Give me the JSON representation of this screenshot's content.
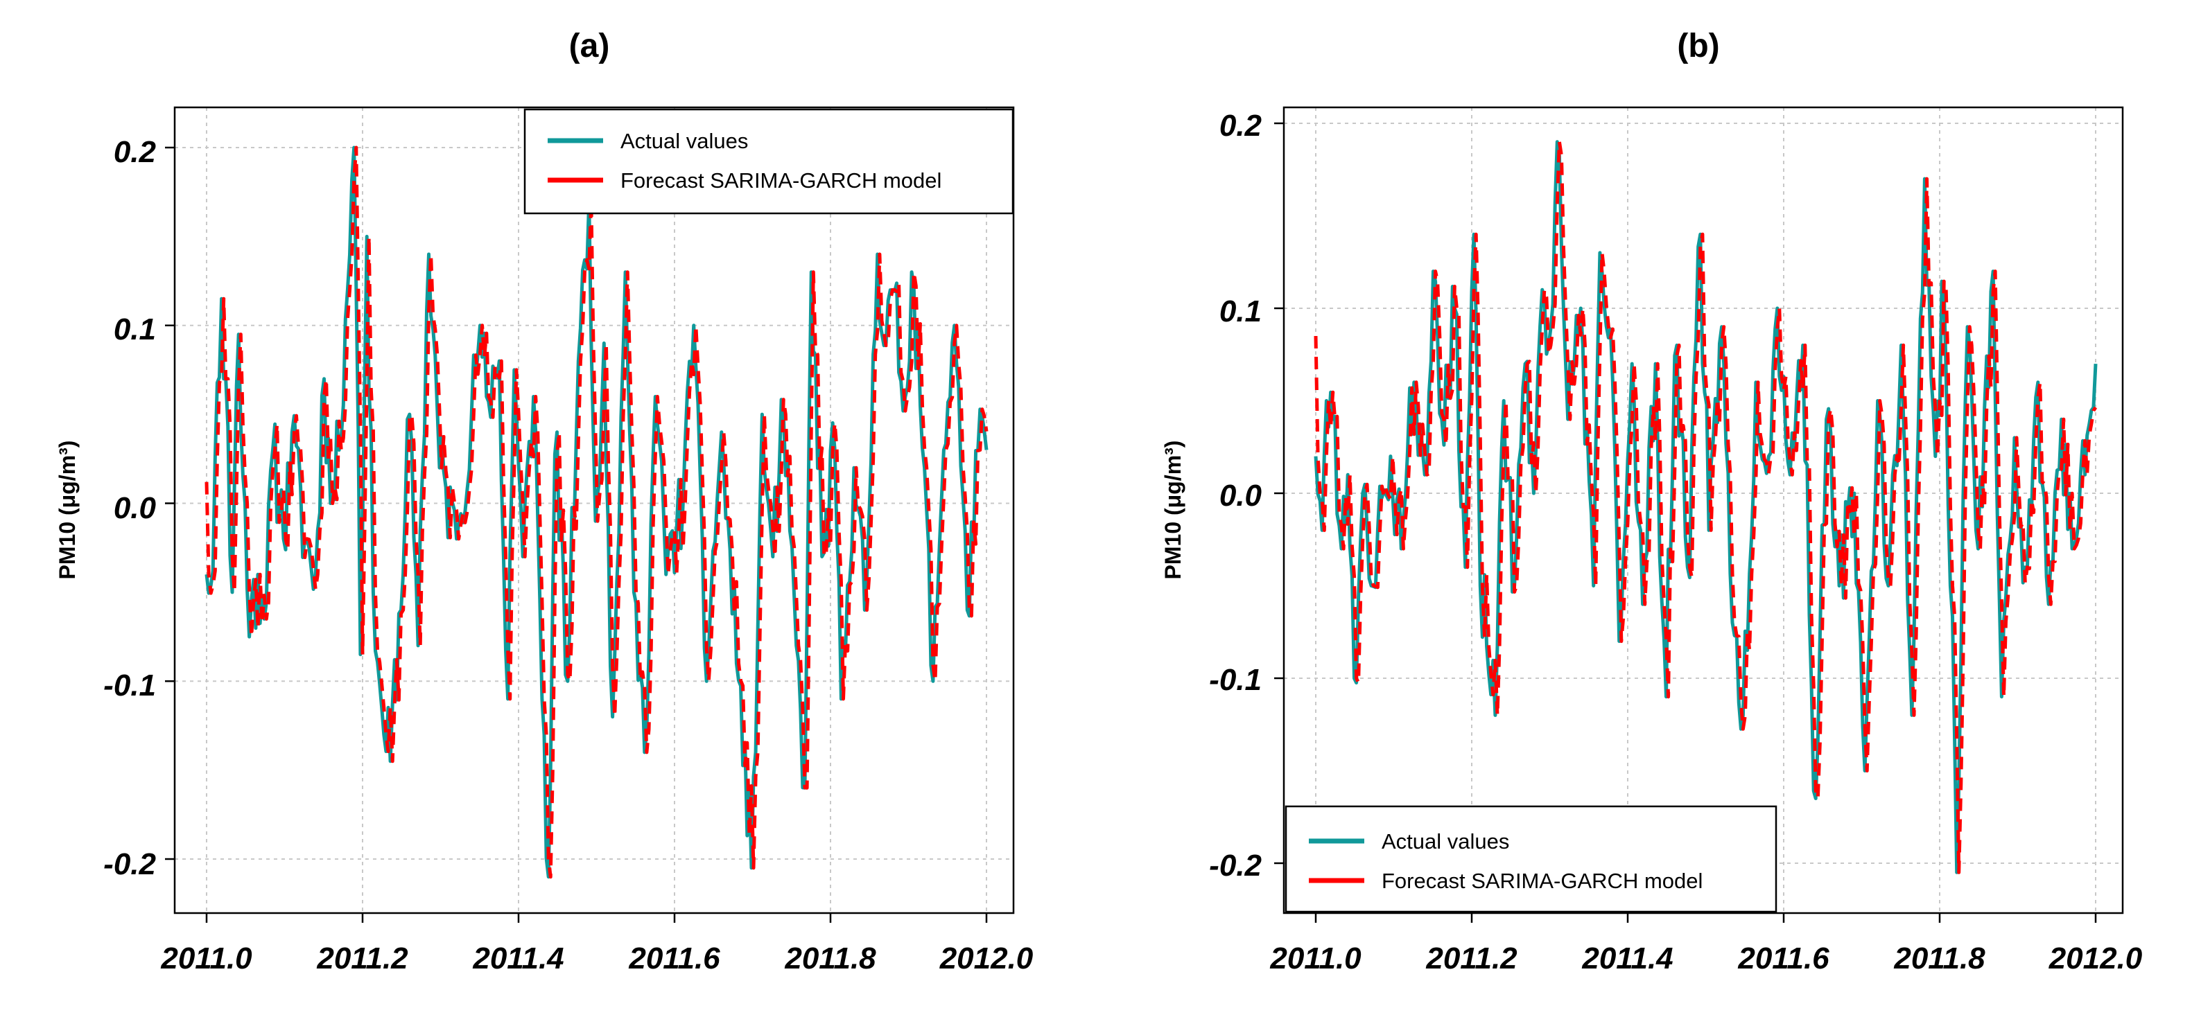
{
  "chart_data": [
    {
      "type": "line",
      "title": "(a)",
      "xlabel": "",
      "ylabel": "PM10 (μg/m³)",
      "xlim": [
        2011.0,
        2012.0
      ],
      "ylim": [
        -0.22,
        0.22
      ],
      "x_ticks": [
        "2011.0",
        "2011.2",
        "2011.4",
        "2011.6",
        "2011.8",
        "2012.0"
      ],
      "y_ticks": [
        "-0.2",
        "-0.1",
        "0.0",
        "0.1",
        "0.2"
      ],
      "grid": true,
      "legend_position": "top-right",
      "series": [
        {
          "name": "Actual values",
          "color": "#10999a",
          "style": "solid"
        },
        {
          "name": "Forecast SARIMA-GARCH model",
          "color": "#ff0000",
          "style": "dashed"
        }
      ],
      "anchors": [
        [
          2011.0,
          -0.04
        ],
        [
          2011.008,
          -0.038
        ],
        [
          2011.012,
          0.025
        ],
        [
          2011.018,
          0.115
        ],
        [
          2011.025,
          0.07
        ],
        [
          2011.032,
          -0.05
        ],
        [
          2011.04,
          0.095
        ],
        [
          2011.048,
          0.0
        ],
        [
          2011.055,
          -0.075
        ],
        [
          2011.065,
          -0.04
        ],
        [
          2011.075,
          -0.065
        ],
        [
          2011.085,
          0.03
        ],
        [
          2011.1,
          -0.02
        ],
        [
          2011.11,
          0.04
        ],
        [
          2011.125,
          -0.02
        ],
        [
          2011.14,
          -0.04
        ],
        [
          2011.15,
          0.07
        ],
        [
          2011.16,
          0.0
        ],
        [
          2011.17,
          0.03
        ],
        [
          2011.18,
          0.12
        ],
        [
          2011.19,
          0.2
        ],
        [
          2011.198,
          -0.085
        ],
        [
          2011.205,
          0.15
        ],
        [
          2011.215,
          -0.05
        ],
        [
          2011.225,
          -0.115
        ],
        [
          2011.235,
          -0.145
        ],
        [
          2011.248,
          -0.06
        ],
        [
          2011.26,
          0.05
        ],
        [
          2011.27,
          -0.08
        ],
        [
          2011.285,
          0.14
        ],
        [
          2011.3,
          0.02
        ],
        [
          2011.32,
          -0.02
        ],
        [
          2011.34,
          0.05
        ],
        [
          2011.35,
          0.1
        ],
        [
          2011.36,
          0.06
        ],
        [
          2011.375,
          0.08
        ],
        [
          2011.385,
          -0.11
        ],
        [
          2011.395,
          0.075
        ],
        [
          2011.405,
          -0.03
        ],
        [
          2011.42,
          0.06
        ],
        [
          2011.432,
          -0.13
        ],
        [
          2011.438,
          -0.21
        ],
        [
          2011.448,
          0.04
        ],
        [
          2011.462,
          -0.1
        ],
        [
          2011.478,
          0.08
        ],
        [
          2011.49,
          0.17
        ],
        [
          2011.5,
          -0.01
        ],
        [
          2011.51,
          0.09
        ],
        [
          2011.52,
          -0.12
        ],
        [
          2011.538,
          0.13
        ],
        [
          2011.548,
          -0.05
        ],
        [
          2011.562,
          -0.14
        ],
        [
          2011.575,
          0.06
        ],
        [
          2011.59,
          -0.04
        ],
        [
          2011.61,
          0.0
        ],
        [
          2011.625,
          0.1
        ],
        [
          2011.64,
          -0.1
        ],
        [
          2011.66,
          0.04
        ],
        [
          2011.68,
          -0.09
        ],
        [
          2011.7,
          -0.205
        ],
        [
          2011.712,
          0.05
        ],
        [
          2011.725,
          -0.03
        ],
        [
          2011.74,
          0.05
        ],
        [
          2011.755,
          -0.08
        ],
        [
          2011.768,
          -0.16
        ],
        [
          2011.775,
          0.13
        ],
        [
          2011.79,
          -0.03
        ],
        [
          2011.805,
          0.03
        ],
        [
          2011.815,
          -0.11
        ],
        [
          2011.83,
          0.02
        ],
        [
          2011.845,
          -0.06
        ],
        [
          2011.86,
          0.14
        ],
        [
          2011.87,
          0.09
        ],
        [
          2011.88,
          0.12
        ],
        [
          2011.895,
          0.06
        ],
        [
          2011.905,
          0.13
        ],
        [
          2011.92,
          0.02
        ],
        [
          2011.932,
          -0.1
        ],
        [
          2011.945,
          0.03
        ],
        [
          2011.96,
          0.1
        ],
        [
          2011.975,
          -0.06
        ],
        [
          2011.99,
          0.03
        ],
        [
          2012.0,
          0.03
        ]
      ],
      "forecast_start": 0.012
    },
    {
      "type": "line",
      "title": "(b)",
      "xlabel": "",
      "ylabel": "PM10 (μg/m³)",
      "xlim": [
        2011.0,
        2012.0
      ],
      "ylim": [
        -0.225,
        0.21
      ],
      "x_ticks": [
        "2011.0",
        "2011.2",
        "2011.4",
        "2011.6",
        "2011.8",
        "2012.0"
      ],
      "y_ticks": [
        "-0.2",
        "-0.1",
        "0.0",
        "0.1",
        "0.2"
      ],
      "grid": true,
      "legend_position": "bottom-left",
      "series": [
        {
          "name": "Actual values",
          "color": "#10999a",
          "style": "solid"
        },
        {
          "name": "Forecast SARIMA-GARCH model",
          "color": "#ff0000",
          "style": "dashed"
        }
      ],
      "anchors": [
        [
          2011.0,
          0.02
        ],
        [
          2011.008,
          -0.02
        ],
        [
          2011.015,
          0.05
        ],
        [
          2011.022,
          0.04
        ],
        [
          2011.032,
          -0.03
        ],
        [
          2011.042,
          0.01
        ],
        [
          2011.05,
          -0.1
        ],
        [
          2011.06,
          0.0
        ],
        [
          2011.07,
          -0.05
        ],
        [
          2011.08,
          -0.02
        ],
        [
          2011.095,
          0.02
        ],
        [
          2011.11,
          -0.03
        ],
        [
          2011.125,
          0.06
        ],
        [
          2011.14,
          0.01
        ],
        [
          2011.152,
          0.12
        ],
        [
          2011.162,
          0.04
        ],
        [
          2011.178,
          0.1
        ],
        [
          2011.192,
          -0.04
        ],
        [
          2011.202,
          0.14
        ],
        [
          2011.212,
          -0.05
        ],
        [
          2011.23,
          -0.12
        ],
        [
          2011.24,
          0.05
        ],
        [
          2011.255,
          -0.05
        ],
        [
          2011.268,
          0.07
        ],
        [
          2011.28,
          0.0
        ],
        [
          2011.29,
          0.11
        ],
        [
          2011.3,
          0.08
        ],
        [
          2011.31,
          0.19
        ],
        [
          2011.322,
          0.04
        ],
        [
          2011.34,
          0.1
        ],
        [
          2011.355,
          -0.05
        ],
        [
          2011.365,
          0.13
        ],
        [
          2011.38,
          0.06
        ],
        [
          2011.39,
          -0.08
        ],
        [
          2011.405,
          0.07
        ],
        [
          2011.42,
          -0.06
        ],
        [
          2011.435,
          0.07
        ],
        [
          2011.448,
          -0.11
        ],
        [
          2011.462,
          0.08
        ],
        [
          2011.478,
          -0.04
        ],
        [
          2011.492,
          0.14
        ],
        [
          2011.505,
          -0.02
        ],
        [
          2011.52,
          0.09
        ],
        [
          2011.535,
          -0.07
        ],
        [
          2011.548,
          -0.12
        ],
        [
          2011.565,
          0.06
        ],
        [
          2011.58,
          0.02
        ],
        [
          2011.592,
          0.1
        ],
        [
          2011.608,
          0.01
        ],
        [
          2011.625,
          0.08
        ],
        [
          2011.64,
          -0.165
        ],
        [
          2011.655,
          0.04
        ],
        [
          2011.67,
          -0.05
        ],
        [
          2011.69,
          0.0
        ],
        [
          2011.705,
          -0.15
        ],
        [
          2011.72,
          0.05
        ],
        [
          2011.735,
          -0.05
        ],
        [
          2011.75,
          0.08
        ],
        [
          2011.765,
          -0.12
        ],
        [
          2011.78,
          0.17
        ],
        [
          2011.795,
          0.02
        ],
        [
          2011.805,
          0.11
        ],
        [
          2011.815,
          -0.05
        ],
        [
          2011.822,
          -0.205
        ],
        [
          2011.835,
          0.09
        ],
        [
          2011.85,
          -0.03
        ],
        [
          2011.868,
          0.12
        ],
        [
          2011.88,
          -0.11
        ],
        [
          2011.895,
          0.03
        ],
        [
          2011.91,
          -0.04
        ],
        [
          2011.925,
          0.06
        ],
        [
          2011.94,
          -0.06
        ],
        [
          2011.955,
          0.04
        ],
        [
          2011.97,
          -0.03
        ],
        [
          2011.985,
          0.01
        ],
        [
          2012.0,
          0.07
        ]
      ],
      "forecast_start": 0.085
    }
  ]
}
